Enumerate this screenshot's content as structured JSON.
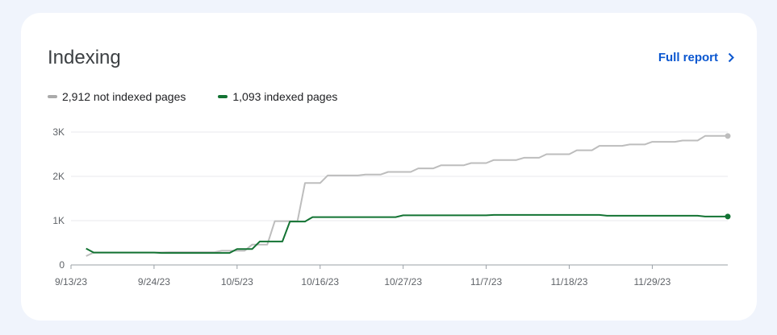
{
  "card": {
    "title": "Indexing",
    "full_report_label": "Full report",
    "icons": {
      "full_report": "chevron-right-icon"
    }
  },
  "legend": [
    {
      "label": "2,912 not indexed pages",
      "color": "#aaaaaa"
    },
    {
      "label": "1,093 indexed pages",
      "color": "#137333"
    }
  ],
  "chart_data": {
    "type": "line",
    "y_ticks": [
      "3K",
      "2K",
      "1K",
      "0"
    ],
    "x_ticks": [
      "9/13/23",
      "9/24/23",
      "10/5/23",
      "10/16/23",
      "10/27/23",
      "11/7/23",
      "11/18/23",
      "11/29/23"
    ],
    "x_range": [
      "9/13/23",
      "12/9/23"
    ],
    "ylim": [
      0,
      3000
    ],
    "grid": true,
    "series": [
      {
        "name": "2,912 not indexed pages",
        "color": "#bdbdbd",
        "points": [
          [
            "9/15/23",
            200
          ],
          [
            "9/16/23",
            280
          ],
          [
            "9/24/23",
            280
          ],
          [
            "9/26/23",
            290
          ],
          [
            "10/2/23",
            290
          ],
          [
            "10/3/23",
            320
          ],
          [
            "10/6/23",
            320
          ],
          [
            "10/7/23",
            460
          ],
          [
            "10/9/23",
            460
          ],
          [
            "10/10/23",
            990
          ],
          [
            "10/13/23",
            990
          ],
          [
            "10/14/23",
            1850
          ],
          [
            "10/16/23",
            1850
          ],
          [
            "10/17/23",
            2020
          ],
          [
            "10/21/23",
            2020
          ],
          [
            "10/22/23",
            2040
          ],
          [
            "10/24/23",
            2040
          ],
          [
            "10/25/23",
            2100
          ],
          [
            "10/28/23",
            2100
          ],
          [
            "10/29/23",
            2180
          ],
          [
            "10/31/23",
            2180
          ],
          [
            "11/1/23",
            2250
          ],
          [
            "11/4/23",
            2250
          ],
          [
            "11/5/23",
            2300
          ],
          [
            "11/7/23",
            2300
          ],
          [
            "11/8/23",
            2370
          ],
          [
            "11/11/23",
            2370
          ],
          [
            "11/12/23",
            2420
          ],
          [
            "11/14/23",
            2420
          ],
          [
            "11/15/23",
            2500
          ],
          [
            "11/18/23",
            2500
          ],
          [
            "11/19/23",
            2590
          ],
          [
            "11/21/23",
            2590
          ],
          [
            "11/22/23",
            2690
          ],
          [
            "11/25/23",
            2690
          ],
          [
            "11/26/23",
            2720
          ],
          [
            "11/28/23",
            2720
          ],
          [
            "11/29/23",
            2780
          ],
          [
            "12/2/23",
            2780
          ],
          [
            "12/3/23",
            2810
          ],
          [
            "12/5/23",
            2810
          ],
          [
            "12/6/23",
            2912
          ],
          [
            "12/9/23",
            2912
          ]
        ]
      },
      {
        "name": "1,093 indexed pages",
        "color": "#137333",
        "points": [
          [
            "9/15/23",
            370
          ],
          [
            "9/16/23",
            280
          ],
          [
            "9/24/23",
            280
          ],
          [
            "9/25/23",
            270
          ],
          [
            "10/4/23",
            270
          ],
          [
            "10/5/23",
            360
          ],
          [
            "10/7/23",
            360
          ],
          [
            "10/8/23",
            530
          ],
          [
            "10/11/23",
            530
          ],
          [
            "10/12/23",
            980
          ],
          [
            "10/14/23",
            980
          ],
          [
            "10/15/23",
            1080
          ],
          [
            "10/26/23",
            1080
          ],
          [
            "10/27/23",
            1120
          ],
          [
            "11/7/23",
            1120
          ],
          [
            "11/8/23",
            1130
          ],
          [
            "11/22/23",
            1130
          ],
          [
            "11/23/23",
            1110
          ],
          [
            "12/5/23",
            1110
          ],
          [
            "12/6/23",
            1093
          ],
          [
            "12/9/23",
            1093
          ]
        ]
      }
    ]
  }
}
